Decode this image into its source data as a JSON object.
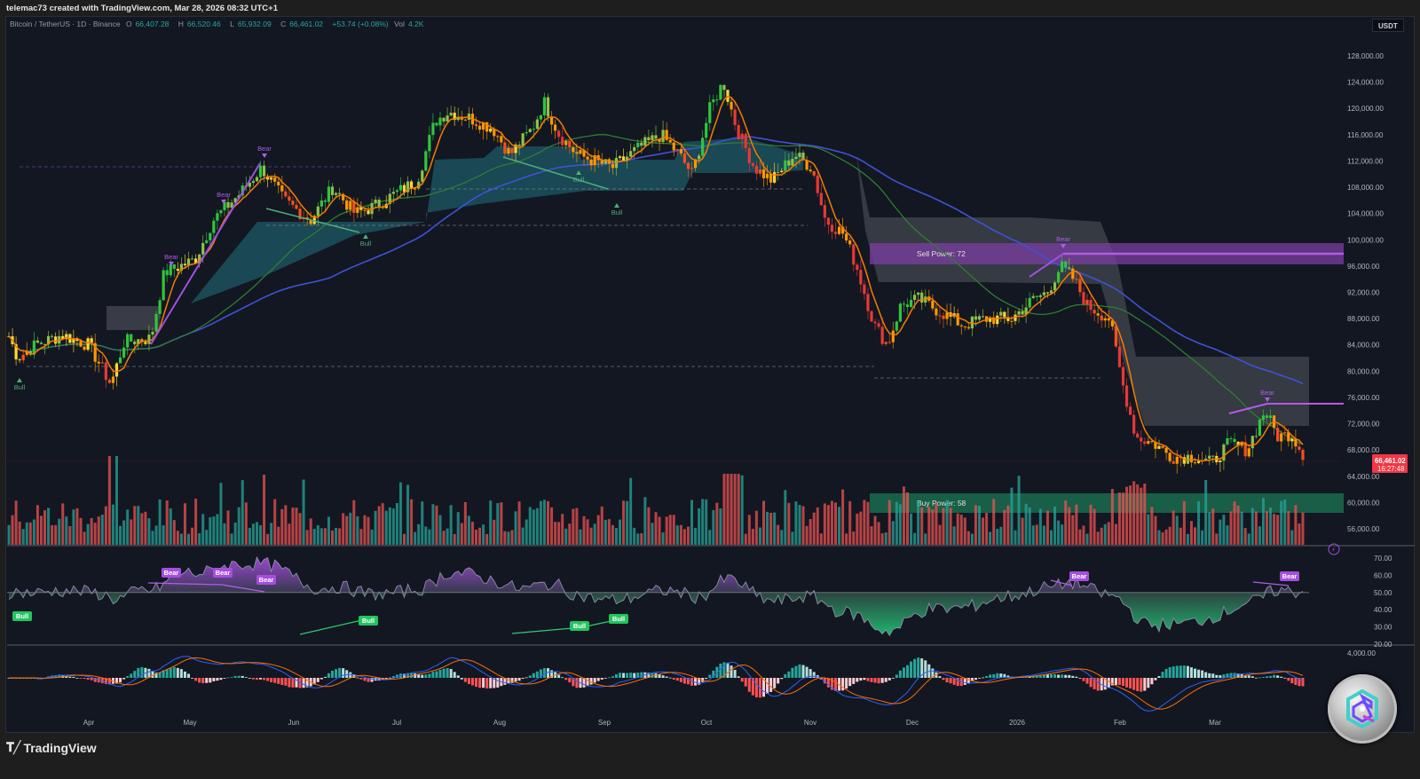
{
  "header": {
    "credit": "telemac73 created with TradingView.com, Mar 28, 2026 08:32 UTC+1",
    "symbol": "Bitcoin / TetherUS · 1D · Binance",
    "open_label": "O",
    "open": "66,407.28",
    "high_label": "H",
    "high": "66,520.46",
    "low_label": "L",
    "low": "65,932.09",
    "close_label": "C",
    "close": "66,461.02",
    "change": "+53.74 (+0.08%)",
    "vol_label": "Vol",
    "vol": "4.2K",
    "currency": "USDT"
  },
  "price_scale": {
    "labels": [
      "128,000.00",
      "124,000.00",
      "120,000.00",
      "116,000.00",
      "112,000.00",
      "108,000.00",
      "104,000.00",
      "100,000.00",
      "96,000.00",
      "92,000.00",
      "88,000.00",
      "84,000.00",
      "80,000.00",
      "76,000.00",
      "72,000.00",
      "68,000.00",
      "64,000.00",
      "60,000.00",
      "56,000.00"
    ],
    "last_price": "66,461.02",
    "countdown": "16:27:48",
    "last_price_color": "#f23645"
  },
  "rsi_scale": {
    "labels": [
      "70.00",
      "60.00",
      "50.00",
      "40.00",
      "30.00",
      "20.00"
    ]
  },
  "macd_scale": {
    "labels": [
      "4,000.00"
    ]
  },
  "time_axis": {
    "labels": [
      "Apr",
      "May",
      "Jun",
      "Jul",
      "Aug",
      "Sep",
      "Oct",
      "Nov",
      "Dec",
      "2026",
      "Feb",
      "Mar"
    ]
  },
  "annotations": {
    "sell_power": "Sell Power: 72",
    "buy_power": "Buy Power: 58",
    "bear": "Bear",
    "bull": "Bull"
  },
  "footer": {
    "brand": "TradingView"
  },
  "colors": {
    "background": "#131722",
    "up": "#26a69a",
    "down": "#ef5350",
    "ema_fast": "#f57c00",
    "ma_mid": "#2e7d32",
    "ma_long": "#3f51d8",
    "cloud_bull": "#1d5561",
    "cloud_bear": "#4a4d56",
    "sell_zone": "#7b3fa0",
    "buy_zone": "#1b6b4e",
    "bear_tag": "#a64ee0",
    "bull_tag": "#22c55e"
  },
  "chart_data": [
    {
      "type": "candlestick",
      "title": "Bitcoin / TetherUS · 1D · Binance",
      "ylabel": "USDT",
      "ylim": [
        54000,
        130000
      ],
      "x": [
        "Mar 2025",
        "Apr",
        "May",
        "Jun",
        "Jul",
        "Aug",
        "Sep",
        "Oct",
        "Nov",
        "Dec",
        "Jan 2026",
        "Feb",
        "Mar"
      ],
      "approx_close": [
        82500,
        84000,
        104000,
        104500,
        108000,
        116000,
        111000,
        118000,
        104000,
        90000,
        89500,
        74000,
        66461
      ],
      "series": [
        {
          "name": "EMA fast (orange)",
          "approx": [
            83000,
            84500,
            103000,
            105000,
            108500,
            117000,
            112000,
            118500,
            106000,
            88000,
            89000,
            72000,
            69000
          ]
        },
        {
          "name": "MA mid (green)",
          "approx": [
            93000,
            85000,
            92000,
            103000,
            105000,
            113000,
            112000,
            114000,
            110000,
            98000,
            92000,
            82000,
            75000
          ]
        },
        {
          "name": "MA long (blue)",
          "approx": [
            85000,
            84000,
            86000,
            92000,
            97000,
            102000,
            105000,
            107000,
            106000,
            102000,
            99000,
            93000,
            87500
          ]
        }
      ],
      "zones": [
        {
          "label": "Sell Power: 72",
          "y_range": [
            96000,
            99500
          ],
          "x_start": "Nov 2025"
        },
        {
          "label": "Buy Power: 58",
          "y_range": [
            58500,
            61500
          ],
          "x_start": "Nov 2025"
        }
      ],
      "markers": [
        "Bear",
        "Bear",
        "Bear",
        "Bull",
        "Bull",
        "Bull",
        "Bull",
        "Bear",
        "Bear"
      ],
      "last": {
        "price": 66461.02,
        "countdown": "16:27:48"
      }
    },
    {
      "type": "bar",
      "title": "Volume",
      "colors": [
        "#26a69a",
        "#ef5350"
      ]
    },
    {
      "type": "area",
      "title": "RSI",
      "ylim": [
        20,
        75
      ],
      "midline": 50,
      "approx": [
        50,
        42,
        60,
        58,
        40,
        62,
        45,
        38,
        55,
        68,
        40,
        72,
        35,
        60,
        30,
        62,
        45,
        62,
        44
      ],
      "divergence_tags": [
        "Bull",
        "Bear",
        "Bear",
        "Bear",
        "Bull",
        "Bull",
        "Bull",
        "Bear",
        "Bear"
      ]
    },
    {
      "type": "line",
      "title": "MACD",
      "ylabel_top": "4,000.00",
      "series": [
        {
          "name": "MACD"
        },
        {
          "name": "Signal"
        },
        {
          "name": "Histogram"
        }
      ]
    }
  ]
}
